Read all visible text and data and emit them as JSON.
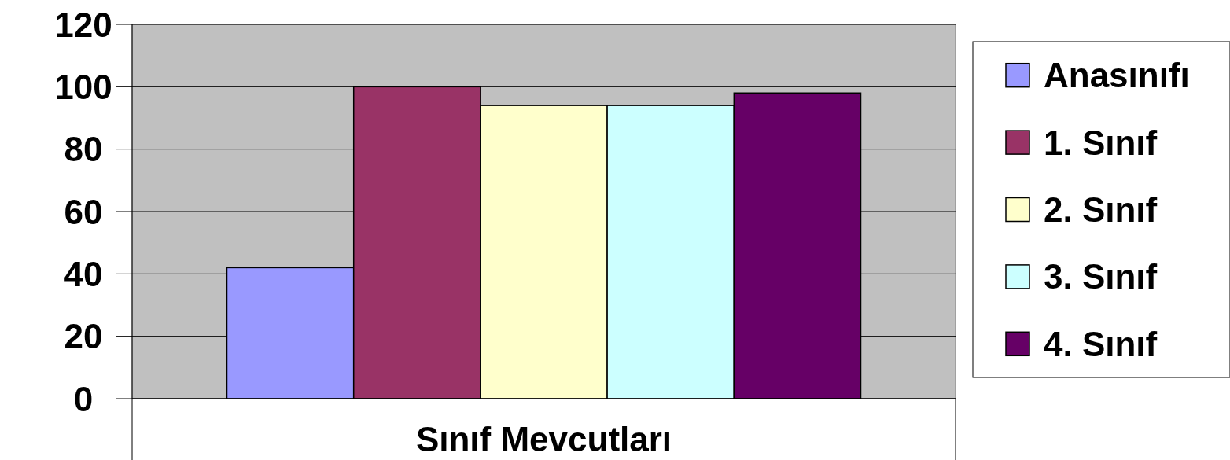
{
  "chart_data": {
    "type": "bar",
    "categories": [
      "Sınıf Mevcutları"
    ],
    "series": [
      {
        "name": "Anasınıfı",
        "color": "#9999ff",
        "values": [
          42
        ]
      },
      {
        "name": "1. Sınıf",
        "color": "#993366",
        "values": [
          100
        ]
      },
      {
        "name": "2. Sınıf",
        "color": "#ffffcc",
        "values": [
          94
        ]
      },
      {
        "name": "3. Sınıf",
        "color": "#ccffff",
        "values": [
          94
        ]
      },
      {
        "name": "4. Sınıf",
        "color": "#660066",
        "values": [
          98
        ]
      }
    ],
    "ylim": [
      0,
      120
    ],
    "yticks": [
      0,
      20,
      40,
      60,
      80,
      100,
      120
    ],
    "grid": "y",
    "legend": "right"
  }
}
